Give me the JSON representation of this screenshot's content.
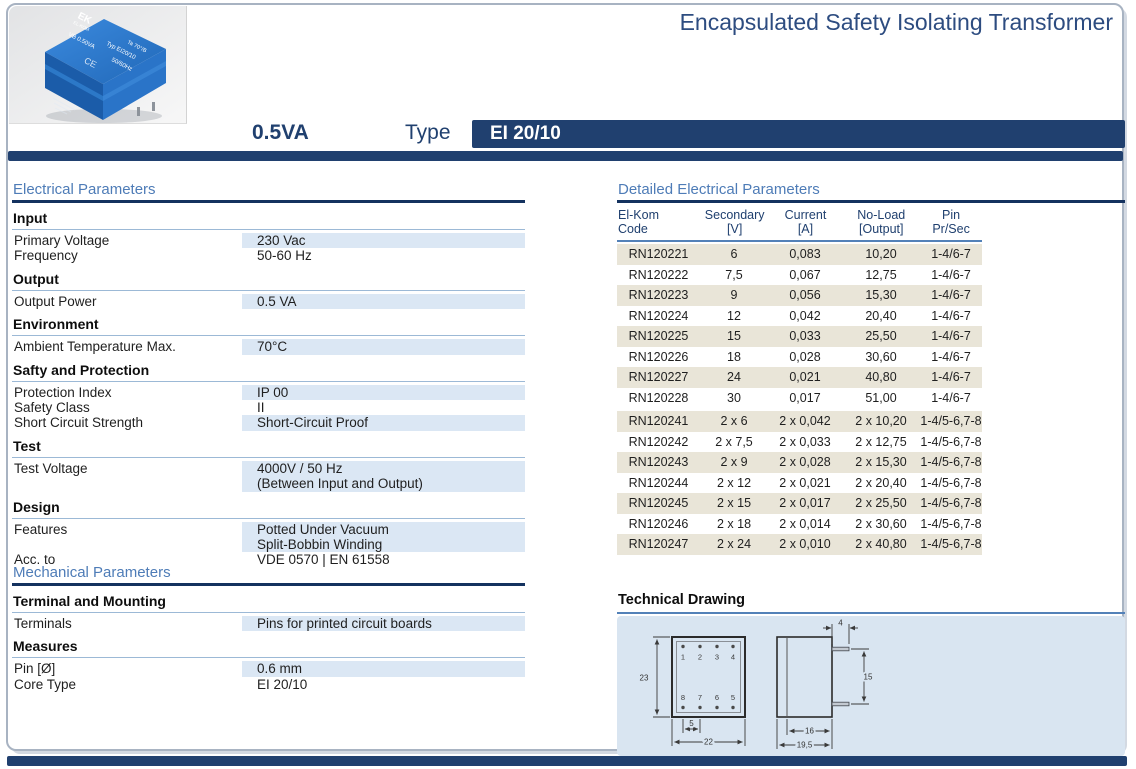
{
  "colors": {
    "navy": "#20406f",
    "underline_navy": "#14325f",
    "title_blue": "#2d4c80",
    "section_blue": "#4e7cb7",
    "band_blue": "#dbe7f4",
    "band_beige": "#e9e5d8",
    "panel_blue": "#d9e5f1"
  },
  "header": {
    "title": "Encapsulated Safety Isolating Transformer",
    "va_rating": "0.5VA",
    "type_label": "Type",
    "type_value": "EI 20/10"
  },
  "photo": {
    "markings": [
      "EK",
      "EL-KOM",
      "Ta 70°/B",
      "Typ EI20/10",
      "VB 0.50VA",
      "50/60Hz",
      "CE"
    ]
  },
  "electrical": {
    "section_title": "Electrical Parameters",
    "groups": [
      {
        "heading": "Input",
        "rows": [
          {
            "label": "Primary Voltage",
            "values": [
              "230 Vac"
            ],
            "shaded": true
          },
          {
            "label": "Frequency",
            "values": [
              "50-60 Hz"
            ],
            "shaded": false
          }
        ]
      },
      {
        "heading": "Output",
        "rows": [
          {
            "label": "Output Power",
            "values": [
              "0.5 VA"
            ],
            "shaded": true
          }
        ]
      },
      {
        "heading": "Environment",
        "rows": [
          {
            "label": "Ambient Temperature Max.",
            "values": [
              "70°C"
            ],
            "shaded": true
          }
        ]
      },
      {
        "heading": "Safty and Protection",
        "rows": [
          {
            "label": "Protection Index",
            "values": [
              "IP 00"
            ],
            "shaded": true
          },
          {
            "label": "Safety Class",
            "values": [
              "II"
            ],
            "shaded": false
          },
          {
            "label": "Short Circuit Strength",
            "values": [
              "Short-Circuit Proof"
            ],
            "shaded": true
          }
        ]
      },
      {
        "heading": "Test",
        "rows": [
          {
            "label": "Test Voltage",
            "values": [
              "4000V / 50 Hz",
              "(Between Input and Output)"
            ],
            "shaded": true
          }
        ]
      },
      {
        "heading": "Design",
        "rows": [
          {
            "label": "Features",
            "values": [
              "Potted Under Vacuum",
              "Split-Bobbin Winding"
            ],
            "shaded": true
          },
          {
            "label": "Acc. to",
            "values": [
              "VDE 0570 | EN 61558"
            ],
            "shaded": false
          }
        ]
      }
    ]
  },
  "mechanical": {
    "section_title": "Mechanical Parameters",
    "groups": [
      {
        "heading": "Terminal and Mounting",
        "rows": [
          {
            "label": "Terminals",
            "values": [
              "Pins for printed circuit boards"
            ],
            "shaded": true
          }
        ]
      },
      {
        "heading": "Measures",
        "rows": [
          {
            "label": "Pin [Ø]",
            "values": [
              "0.6 mm"
            ],
            "shaded": true
          },
          {
            "label": "Core Type",
            "values": [
              "EI 20/10"
            ],
            "shaded": false
          }
        ]
      }
    ]
  },
  "detailed": {
    "section_title": "Detailed Electrical Parameters",
    "columns": [
      [
        "El-Kom",
        "Code"
      ],
      [
        "Secondary",
        "[V]"
      ],
      [
        "Current",
        "[A]"
      ],
      [
        "No-Load",
        "[Output]"
      ],
      [
        "Pin",
        "Pr/Sec"
      ]
    ],
    "group_break_index": 8,
    "rows": [
      [
        "RN120221",
        "6",
        "0,083",
        "10,20",
        "1-4/6-7"
      ],
      [
        "RN120222",
        "7,5",
        "0,067",
        "12,75",
        "1-4/6-7"
      ],
      [
        "RN120223",
        "9",
        "0,056",
        "15,30",
        "1-4/6-7"
      ],
      [
        "RN120224",
        "12",
        "0,042",
        "20,40",
        "1-4/6-7"
      ],
      [
        "RN120225",
        "15",
        "0,033",
        "25,50",
        "1-4/6-7"
      ],
      [
        "RN120226",
        "18",
        "0,028",
        "30,60",
        "1-4/6-7"
      ],
      [
        "RN120227",
        "24",
        "0,021",
        "40,80",
        "1-4/6-7"
      ],
      [
        "RN120228",
        "30",
        "0,017",
        "51,00",
        "1-4/6-7"
      ],
      [
        "RN120241",
        "2 x 6",
        "2 x 0,042",
        "2 x 10,20",
        "1-4/5-6,7-8"
      ],
      [
        "RN120242",
        "2 x 7,5",
        "2 x 0,033",
        "2 x 12,75",
        "1-4/5-6,7-8"
      ],
      [
        "RN120243",
        "2 x 9",
        "2 x 0,028",
        "2 x 15,30",
        "1-4/5-6,7-8"
      ],
      [
        "RN120244",
        "2 x 12",
        "2 x 0,021",
        "2 x 20,40",
        "1-4/5-6,7-8"
      ],
      [
        "RN120245",
        "2 x 15",
        "2 x 0,017",
        "2 x 25,50",
        "1-4/5-6,7-8"
      ],
      [
        "RN120246",
        "2 x 18",
        "2 x 0,014",
        "2 x 30,60",
        "1-4/5-6,7-8"
      ],
      [
        "RN120247",
        "2 x 24",
        "2 x 0,010",
        "2 x 40,80",
        "1-4/5-6,7-8"
      ]
    ]
  },
  "drawing": {
    "title": "Technical Drawing",
    "top_view": {
      "pins_top": [
        "1",
        "2",
        "3",
        "4"
      ],
      "pins_bottom": [
        "8",
        "7",
        "6",
        "5"
      ],
      "dim_height": "23",
      "dim_pitch": "5",
      "dim_width": "22"
    },
    "side_view": {
      "dim_pin_length": "4",
      "dim_pin_span": "15",
      "dim_inner_width": "16",
      "dim_overall_width": "19,5"
    }
  }
}
